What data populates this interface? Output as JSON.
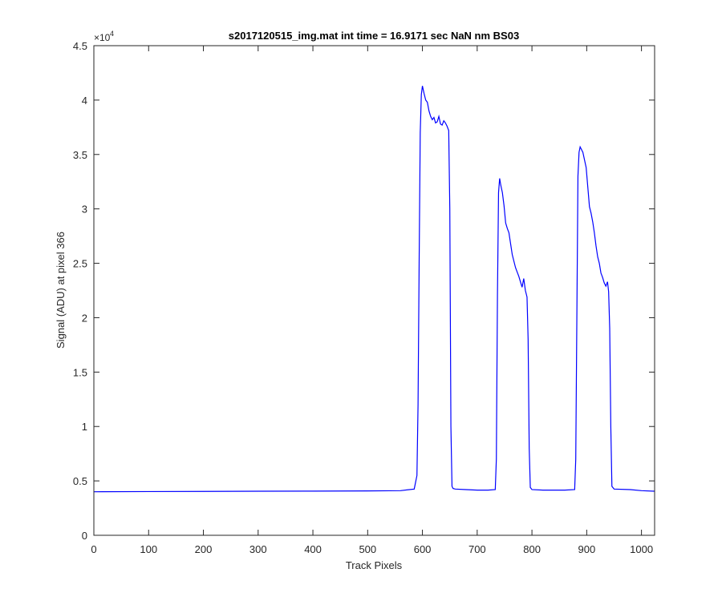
{
  "chart_data": {
    "type": "line",
    "title": "s2017120515_img.mat int time = 16.9171 sec  NaN nm BS03",
    "xlabel": "Track Pixels",
    "ylabel": "Signal (ADU) at pixel 366",
    "xlim": [
      0,
      1024
    ],
    "ylim": [
      0,
      45000
    ],
    "xticks": [
      0,
      100,
      200,
      300,
      400,
      500,
      600,
      700,
      800,
      900,
      1000
    ],
    "xtick_labels": [
      "0",
      "100",
      "200",
      "300",
      "400",
      "500",
      "600",
      "700",
      "800",
      "900",
      "1000"
    ],
    "yticks": [
      0,
      5000,
      10000,
      15000,
      20000,
      25000,
      30000,
      35000,
      40000,
      45000
    ],
    "ytick_labels": [
      "0",
      "0.5",
      "1",
      "1.5",
      "2",
      "2.5",
      "3",
      "3.5",
      "4",
      "4.5"
    ],
    "y_exponent_base": "×10",
    "y_exponent_power": "4",
    "grid": false,
    "legend": "none",
    "series": [
      {
        "color": "#0000ff",
        "x": [
          0,
          100,
          200,
          300,
          400,
          500,
          560,
          585,
          590,
          592,
          594,
          596,
          598,
          600,
          603,
          606,
          609,
          612,
          615,
          618,
          621,
          624,
          627,
          630,
          633,
          636,
          639,
          642,
          645,
          648,
          650,
          652,
          654,
          656,
          660,
          680,
          700,
          720,
          733,
          735,
          737,
          739,
          741,
          743,
          746,
          749,
          752,
          755,
          758,
          761,
          764,
          767,
          770,
          773,
          776,
          779,
          782,
          785,
          788,
          791,
          793,
          795,
          797,
          800,
          820,
          840,
          860,
          878,
          880,
          882,
          884,
          886,
          888,
          890,
          893,
          896,
          899,
          902,
          905,
          908,
          911,
          914,
          917,
          920,
          923,
          926,
          929,
          932,
          935,
          938,
          940,
          942,
          944,
          946,
          950,
          980,
          1000,
          1024
        ],
        "y": [
          4000,
          4020,
          4030,
          4050,
          4060,
          4080,
          4100,
          4250,
          5500,
          12000,
          25000,
          37000,
          40500,
          41300,
          40600,
          40000,
          39800,
          39000,
          38500,
          38200,
          38400,
          37900,
          38000,
          38500,
          37800,
          37700,
          38100,
          37900,
          37600,
          37200,
          30000,
          10000,
          4500,
          4300,
          4250,
          4200,
          4150,
          4150,
          4200,
          7000,
          22000,
          31500,
          32800,
          32200,
          31500,
          30300,
          28700,
          28200,
          27800,
          26800,
          25800,
          25200,
          24600,
          24200,
          23800,
          23300,
          22800,
          23600,
          22500,
          21900,
          18000,
          8000,
          4400,
          4200,
          4150,
          4150,
          4150,
          4200,
          7000,
          20000,
          33000,
          35200,
          35700,
          35500,
          35200,
          34500,
          33800,
          32000,
          30200,
          29600,
          28800,
          27800,
          26600,
          25600,
          25000,
          24100,
          23700,
          23200,
          22900,
          23300,
          22400,
          19000,
          10000,
          4500,
          4250,
          4200,
          4100,
          4050
        ]
      }
    ]
  }
}
